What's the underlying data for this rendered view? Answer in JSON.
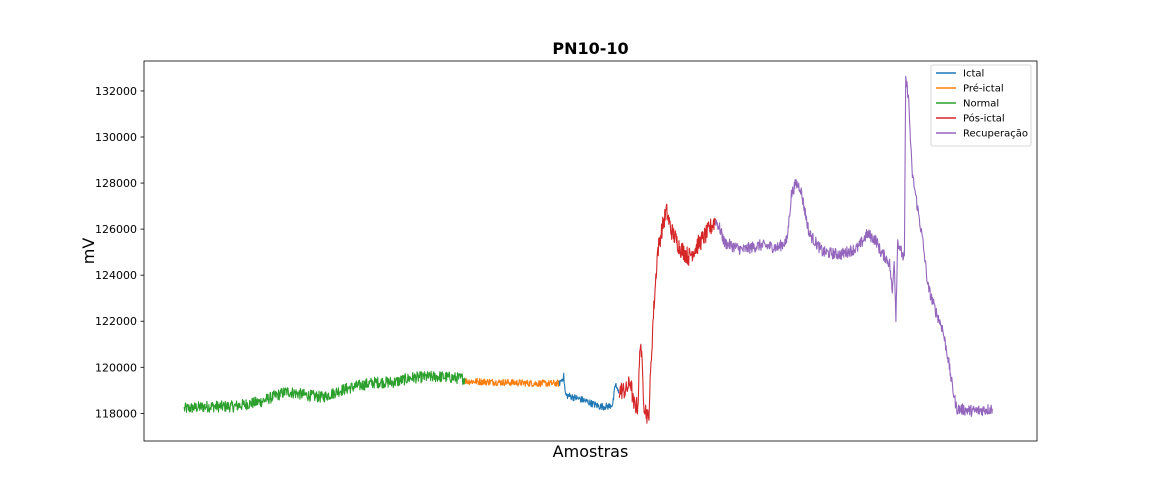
{
  "chart_data": {
    "type": "line",
    "title": "PN10-10",
    "xlabel": "Amostras",
    "ylabel": "mV",
    "ylim": [
      116800,
      133300
    ],
    "yticks": [
      118000,
      120000,
      122000,
      124000,
      126000,
      128000,
      130000,
      132000
    ],
    "ytick_labels": [
      "118000",
      "120000",
      "122000",
      "124000",
      "126000",
      "128000",
      "130000",
      "132000"
    ],
    "xlim": [
      0,
      1
    ],
    "x_ticks_shown": false,
    "grid": false,
    "legend_position": "top-right",
    "legend": [
      {
        "name": "Ictal",
        "color": "#1f77b4"
      },
      {
        "name": "Pré-ictal",
        "color": "#ff7f0e"
      },
      {
        "name": "Normal",
        "color": "#2ca02c"
      },
      {
        "name": "Pós-ictal",
        "color": "#d62728"
      },
      {
        "name": "Recuperação",
        "color": "#9467bd"
      }
    ],
    "segments": [
      {
        "name": "Normal",
        "color": "#2ca02c",
        "noise": 250,
        "points": [
          [
            0.045,
            118200
          ],
          [
            0.07,
            118300
          ],
          [
            0.1,
            118300
          ],
          [
            0.13,
            118500
          ],
          [
            0.16,
            118950
          ],
          [
            0.18,
            118800
          ],
          [
            0.2,
            118700
          ],
          [
            0.22,
            119000
          ],
          [
            0.24,
            119200
          ],
          [
            0.26,
            119350
          ],
          [
            0.28,
            119350
          ],
          [
            0.3,
            119550
          ],
          [
            0.33,
            119600
          ],
          [
            0.36,
            119500
          ]
        ]
      },
      {
        "name": "Pré-ictal",
        "color": "#ff7f0e",
        "noise": 150,
        "points": [
          [
            0.36,
            119400
          ],
          [
            0.4,
            119350
          ],
          [
            0.44,
            119300
          ],
          [
            0.465,
            119300
          ]
        ]
      },
      {
        "name": "Ictal",
        "color": "#1f77b4",
        "noise": 150,
        "points": [
          [
            0.465,
            119300
          ],
          [
            0.47,
            119600
          ],
          [
            0.472,
            118800
          ],
          [
            0.49,
            118600
          ],
          [
            0.51,
            118300
          ],
          [
            0.52,
            118300
          ],
          [
            0.525,
            118400
          ],
          [
            0.528,
            119300
          ],
          [
            0.53,
            119000
          ],
          [
            0.532,
            118900
          ]
        ]
      },
      {
        "name": "Pós-ictal",
        "color": "#d62728",
        "noise": 400,
        "points": [
          [
            0.532,
            119000
          ],
          [
            0.54,
            119000
          ],
          [
            0.545,
            119400
          ],
          [
            0.548,
            118400
          ],
          [
            0.553,
            118300
          ],
          [
            0.556,
            121300
          ],
          [
            0.56,
            118400
          ],
          [
            0.565,
            117700
          ],
          [
            0.57,
            122000
          ],
          [
            0.575,
            125000
          ],
          [
            0.58,
            126000
          ],
          [
            0.585,
            126800
          ],
          [
            0.59,
            126000
          ],
          [
            0.6,
            125200
          ],
          [
            0.61,
            124800
          ],
          [
            0.62,
            125300
          ],
          [
            0.63,
            125800
          ],
          [
            0.64,
            126400
          ]
        ]
      },
      {
        "name": "Recuperação",
        "color": "#9467bd",
        "noise": 250,
        "points": [
          [
            0.64,
            126400
          ],
          [
            0.645,
            126000
          ],
          [
            0.65,
            125400
          ],
          [
            0.67,
            125100
          ],
          [
            0.69,
            125300
          ],
          [
            0.71,
            125200
          ],
          [
            0.72,
            125500
          ],
          [
            0.725,
            127500
          ],
          [
            0.73,
            128000
          ],
          [
            0.735,
            127800
          ],
          [
            0.745,
            125800
          ],
          [
            0.76,
            125000
          ],
          [
            0.78,
            124900
          ],
          [
            0.8,
            125200
          ],
          [
            0.81,
            125800
          ],
          [
            0.82,
            125500
          ],
          [
            0.825,
            125000
          ],
          [
            0.83,
            124800
          ],
          [
            0.835,
            124500
          ],
          [
            0.838,
            123200
          ],
          [
            0.84,
            124800
          ],
          [
            0.842,
            122200
          ],
          [
            0.844,
            125500
          ],
          [
            0.848,
            125000
          ],
          [
            0.85,
            124800
          ],
          [
            0.8515,
            124800
          ],
          [
            0.853,
            132500
          ],
          [
            0.856,
            131800
          ],
          [
            0.86,
            128500
          ],
          [
            0.866,
            127000
          ],
          [
            0.872,
            125500
          ],
          [
            0.878,
            123500
          ],
          [
            0.886,
            122500
          ],
          [
            0.894,
            121700
          ],
          [
            0.9,
            120500
          ],
          [
            0.905,
            119200
          ],
          [
            0.91,
            118200
          ],
          [
            0.93,
            118100
          ],
          [
            0.95,
            118200
          ]
        ]
      }
    ]
  }
}
